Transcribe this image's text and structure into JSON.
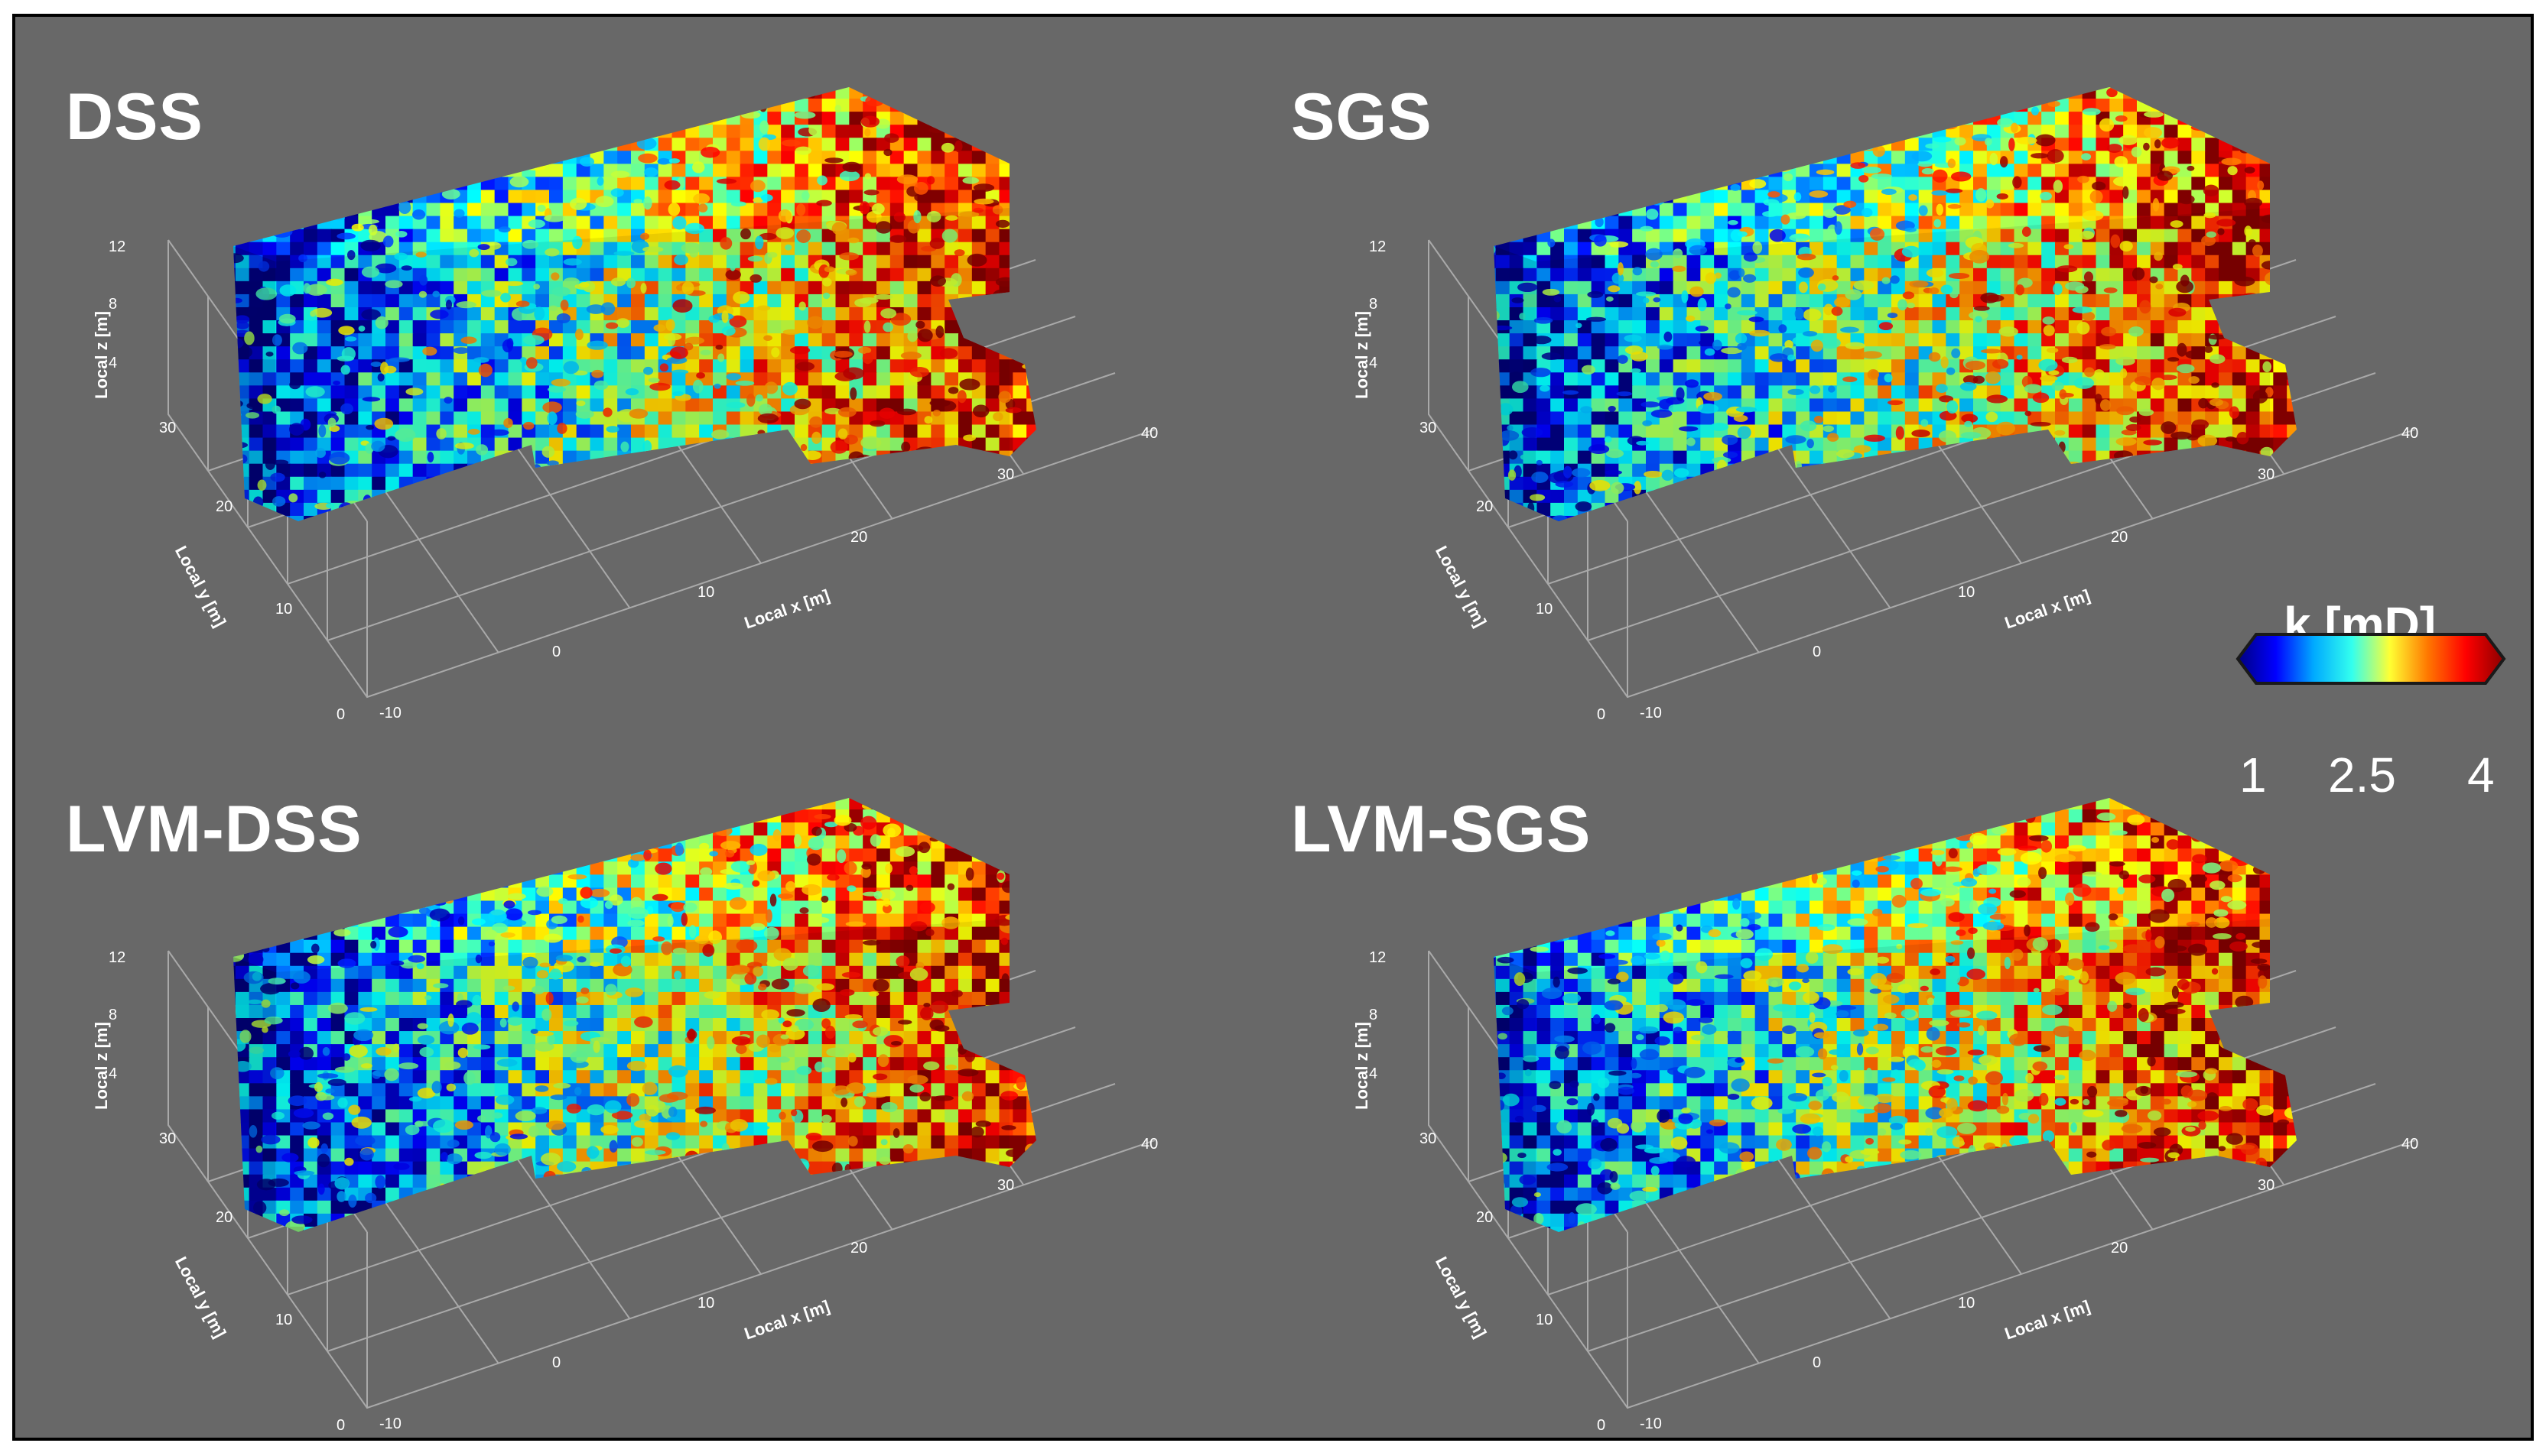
{
  "panels": [
    {
      "id": "dss",
      "title": "DSS"
    },
    {
      "id": "sgs",
      "title": "SGS"
    },
    {
      "id": "lvm_dss",
      "title": "LVM-DSS"
    },
    {
      "id": "lvm_sgs",
      "title": "LVM-SGS"
    }
  ],
  "axes": {
    "x_label": "Local x [m]",
    "y_label": "Local y [m]",
    "z_label": "Local z [m]",
    "x_ticks": [
      "-10",
      "0",
      "10",
      "20",
      "30",
      "40"
    ],
    "y_ticks": [
      "0",
      "10",
      "20",
      "30"
    ],
    "z_ticks": [
      "4",
      "8",
      "12"
    ]
  },
  "colorbar": {
    "title": "k [mD]",
    "ticks": [
      "1",
      "2.5",
      "4"
    ],
    "colormap": "jet",
    "extend": "both",
    "colors": [
      "#00007f",
      "#0000ff",
      "#00aaff",
      "#33ffee",
      "#ffff33",
      "#ff7700",
      "#ff0000",
      "#8b0000"
    ]
  },
  "colors": {
    "background": "#686868",
    "frame": "#000000",
    "text": "#ffffff",
    "grid": "#b5b5b5"
  }
}
